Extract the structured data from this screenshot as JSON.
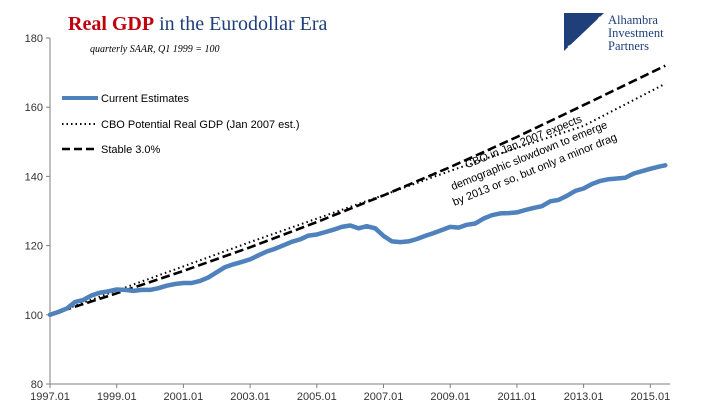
{
  "chart_data": {
    "type": "line",
    "title_part1": "Real GDP",
    "title_part2": " in the Eurodollar Era",
    "subtitle": "quarterly SAAR, Q1 1999 = 100",
    "ylim": [
      80,
      180
    ],
    "xlim": [
      1997.0,
      2015.5
    ],
    "yticks": [
      80,
      100,
      120,
      140,
      160,
      180
    ],
    "xticks": [
      {
        "label": "1997.01",
        "x": 1997.0
      },
      {
        "label": "1999.01",
        "x": 1999.0
      },
      {
        "label": "2001.01",
        "x": 2001.0
      },
      {
        "label": "2003.01",
        "x": 2003.0
      },
      {
        "label": "2005.01",
        "x": 2005.0
      },
      {
        "label": "2007.01",
        "x": 2007.0
      },
      {
        "label": "2009.01",
        "x": 2009.0
      },
      {
        "label": "2011.01",
        "x": 2011.0
      },
      {
        "label": "2013.01",
        "x": 2013.0
      },
      {
        "label": "2015.01",
        "x": 2015.0
      }
    ],
    "grid": false,
    "legend_position": "top-left",
    "series": [
      {
        "name": "Current Estimates",
        "style": "solid",
        "color": "#4f81bd",
        "points": [
          [
            1997.0,
            100.0
          ],
          [
            1997.25,
            100.8
          ],
          [
            1997.5,
            101.8
          ],
          [
            1997.75,
            103.7
          ],
          [
            1998.0,
            104.3
          ],
          [
            1998.25,
            105.6
          ],
          [
            1998.5,
            106.4
          ],
          [
            1998.75,
            106.8
          ],
          [
            1999.0,
            107.3
          ],
          [
            1999.25,
            107.2
          ],
          [
            1999.5,
            106.9
          ],
          [
            1999.75,
            107.2
          ],
          [
            2000.0,
            107.2
          ],
          [
            2000.25,
            107.7
          ],
          [
            2000.5,
            108.4
          ],
          [
            2000.75,
            108.9
          ],
          [
            2001.0,
            109.2
          ],
          [
            2001.25,
            109.2
          ],
          [
            2001.5,
            109.8
          ],
          [
            2001.75,
            110.8
          ],
          [
            2002.0,
            112.3
          ],
          [
            2002.25,
            113.8
          ],
          [
            2002.5,
            114.6
          ],
          [
            2002.75,
            115.3
          ],
          [
            2003.0,
            116.0
          ],
          [
            2003.25,
            117.2
          ],
          [
            2003.5,
            118.3
          ],
          [
            2003.75,
            119.1
          ],
          [
            2004.0,
            120.1
          ],
          [
            2004.25,
            121.1
          ],
          [
            2004.5,
            121.8
          ],
          [
            2004.75,
            122.9
          ],
          [
            2005.0,
            123.2
          ],
          [
            2005.25,
            123.9
          ],
          [
            2005.5,
            124.6
          ],
          [
            2005.75,
            125.4
          ],
          [
            2006.0,
            125.8
          ],
          [
            2006.25,
            125.0
          ],
          [
            2006.5,
            125.6
          ],
          [
            2006.75,
            125.0
          ],
          [
            2007.0,
            122.8
          ],
          [
            2007.25,
            121.2
          ],
          [
            2007.5,
            121.0
          ],
          [
            2007.75,
            121.2
          ],
          [
            2008.0,
            121.9
          ],
          [
            2008.25,
            122.8
          ],
          [
            2008.5,
            123.6
          ],
          [
            2008.75,
            124.5
          ],
          [
            2009.0,
            125.4
          ],
          [
            2009.25,
            125.2
          ],
          [
            2009.5,
            126.0
          ],
          [
            2009.75,
            126.4
          ],
          [
            2010.0,
            127.8
          ],
          [
            2010.25,
            128.8
          ],
          [
            2010.5,
            129.3
          ],
          [
            2010.75,
            129.4
          ],
          [
            2011.0,
            129.6
          ],
          [
            2011.25,
            130.3
          ],
          [
            2011.5,
            130.9
          ],
          [
            2011.75,
            131.4
          ],
          [
            2012.0,
            132.8
          ],
          [
            2012.25,
            133.2
          ],
          [
            2012.5,
            134.4
          ],
          [
            2012.75,
            135.8
          ],
          [
            2013.0,
            136.5
          ],
          [
            2013.25,
            137.8
          ],
          [
            2013.5,
            138.7
          ],
          [
            2013.75,
            139.2
          ],
          [
            2014.0,
            139.4
          ],
          [
            2014.25,
            139.6
          ],
          [
            2014.5,
            140.8
          ],
          [
            2014.75,
            141.5
          ],
          [
            2015.0,
            142.2
          ],
          [
            2015.25,
            142.8
          ],
          [
            2015.45,
            143.2
          ]
        ]
      },
      {
        "name": "CBO Potential Real GDP (Jan 2007 est.)",
        "style": "dotted",
        "color": "#000000",
        "points": [
          [
            1997.0,
            100.0
          ],
          [
            1999.0,
            107.0
          ],
          [
            2001.0,
            114.0
          ],
          [
            2003.0,
            121.0
          ],
          [
            2005.0,
            127.8
          ],
          [
            2007.0,
            134.6
          ],
          [
            2009.0,
            141.6
          ],
          [
            2011.0,
            148.2
          ],
          [
            2013.0,
            154.6
          ],
          [
            2015.45,
            166.8
          ]
        ]
      },
      {
        "name": "Stable 3.0%",
        "style": "dashed",
        "color": "#000000",
        "points": [
          [
            1997.0,
            100.0
          ],
          [
            1999.0,
            106.2
          ],
          [
            2001.0,
            112.7
          ],
          [
            2003.0,
            119.5
          ],
          [
            2005.0,
            126.8
          ],
          [
            2007.0,
            134.5
          ],
          [
            2009.0,
            142.7
          ],
          [
            2011.0,
            151.4
          ],
          [
            2013.0,
            160.6
          ],
          [
            2015.45,
            172.0
          ]
        ]
      }
    ],
    "annotation": [
      "CBO in Jan 2007 expects",
      "demographic slowdown to emerge",
      "by 2013 or so, but only a minor drag"
    ]
  },
  "logo": {
    "lines": [
      "Alhambra",
      "Investment",
      "Partners"
    ]
  }
}
